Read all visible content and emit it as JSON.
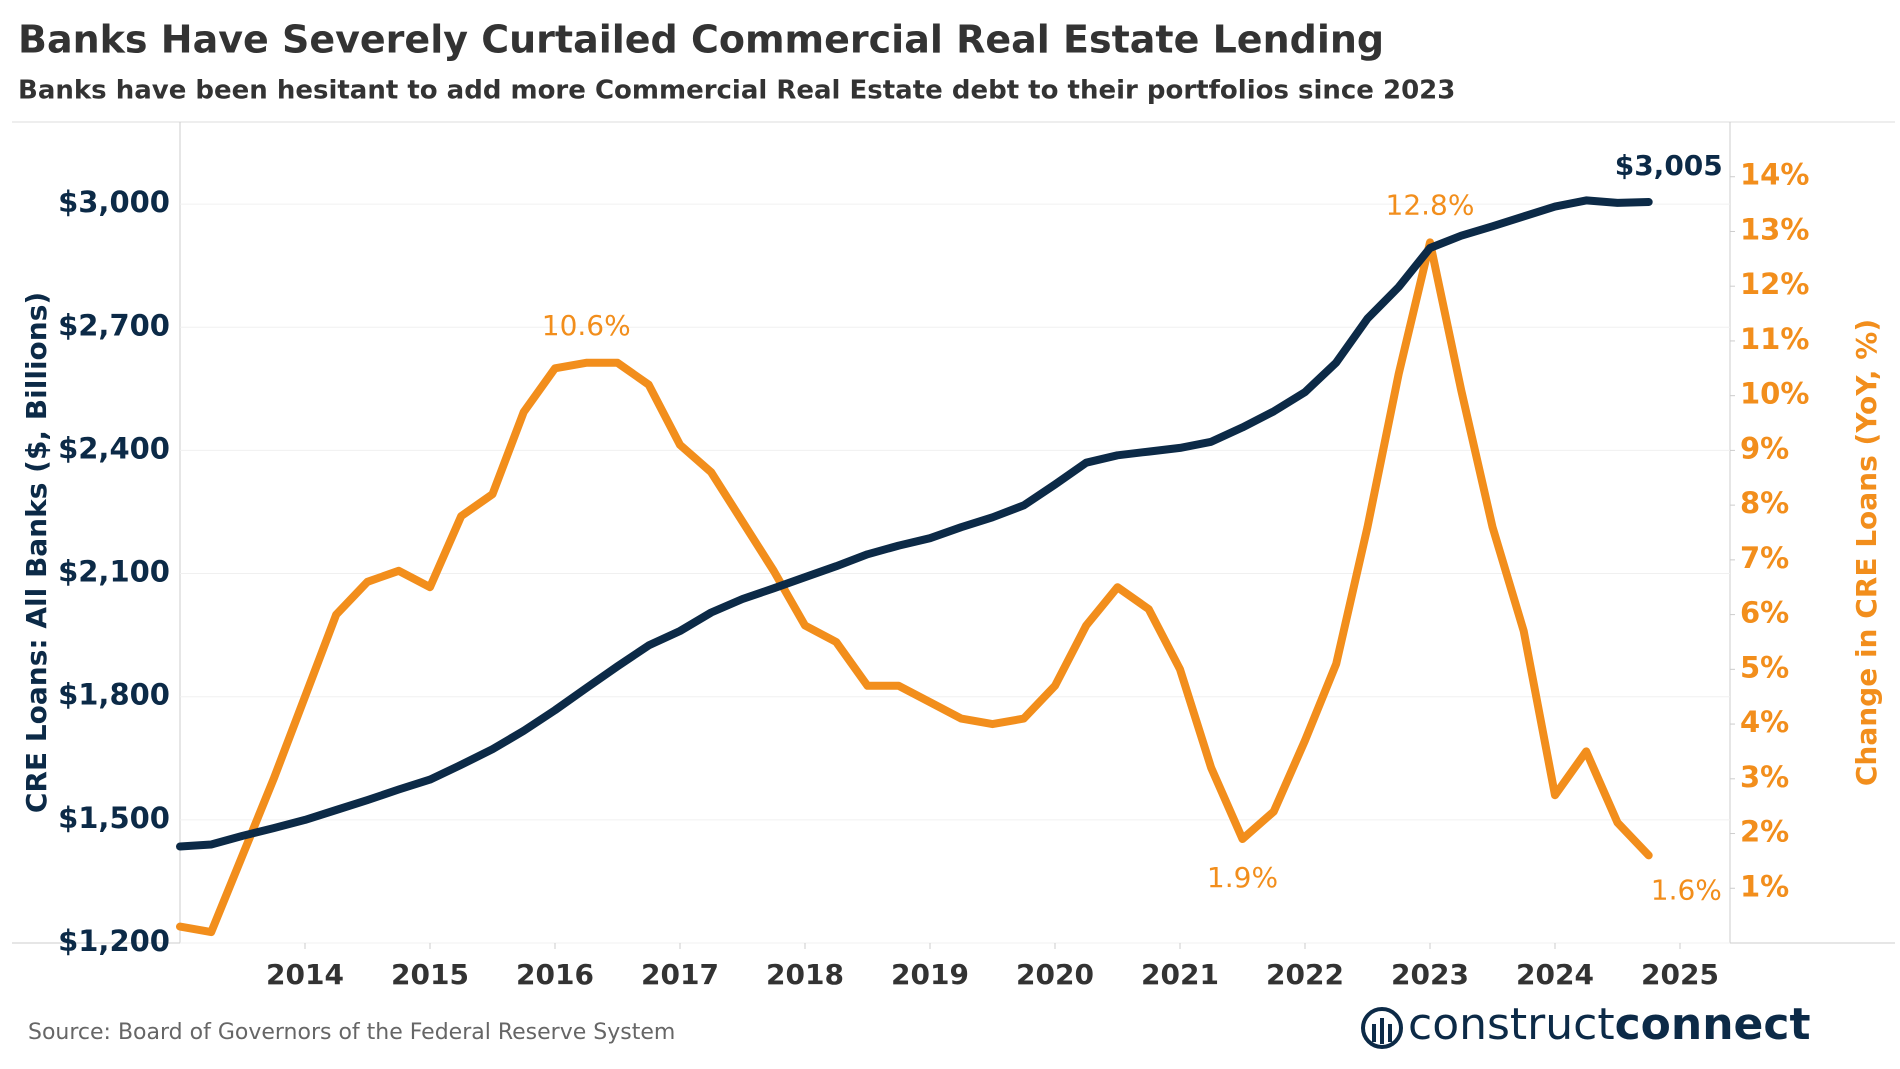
{
  "chart_data": {
    "type": "line",
    "title": "Banks Have Severely Curtailed Commercial Real Estate Lending",
    "subtitle": "Banks have been hesitant to add more Commercial Real Estate debt to their portfolios since 2023",
    "source": "Source: Board of Governors of the Federal Reserve System",
    "logo": {
      "prefix": "construct",
      "suffix": "connect"
    },
    "ylabel": "CRE Loans: All Banks ($, Billions)",
    "y2label": "Change in CRE Loans (YoY, %)",
    "x": [
      2013,
      2013.25,
      2013.5,
      2013.75,
      2014,
      2014.25,
      2014.5,
      2014.75,
      2015,
      2015.25,
      2015.5,
      2015.75,
      2016,
      2016.25,
      2016.5,
      2016.75,
      2017,
      2017.25,
      2017.5,
      2017.75,
      2018,
      2018.25,
      2018.5,
      2018.75,
      2019,
      2019.25,
      2019.5,
      2019.75,
      2020,
      2020.25,
      2020.5,
      2020.75,
      2021,
      2021.25,
      2021.5,
      2021.75,
      2022,
      2022.25,
      2022.5,
      2022.75,
      2023,
      2023.25,
      2023.5,
      2023.75,
      2024,
      2024.25,
      2024.5,
      2024.75
    ],
    "xlim": [
      2013,
      2025.4
    ],
    "xticks": [
      2014,
      2015,
      2016,
      2017,
      2018,
      2019,
      2020,
      2021,
      2022,
      2023,
      2024,
      2025
    ],
    "ylim": [
      1200,
      3200
    ],
    "yticks": [
      {
        "value": 1200,
        "label": "$1,200"
      },
      {
        "value": 1500,
        "label": "$1,500"
      },
      {
        "value": 1800,
        "label": "$1,800"
      },
      {
        "value": 2100,
        "label": "$2,100"
      },
      {
        "value": 2400,
        "label": "$2,400"
      },
      {
        "value": 2700,
        "label": "$2,700"
      },
      {
        "value": 3000,
        "label": "$3,000"
      }
    ],
    "y2lim": [
      0,
      15
    ],
    "y2ticks": [
      {
        "value": 1,
        "label": "1%"
      },
      {
        "value": 2,
        "label": "2%"
      },
      {
        "value": 3,
        "label": "3%"
      },
      {
        "value": 4,
        "label": "4%"
      },
      {
        "value": 5,
        "label": "5%"
      },
      {
        "value": 6,
        "label": "6%"
      },
      {
        "value": 7,
        "label": "7%"
      },
      {
        "value": 8,
        "label": "8%"
      },
      {
        "value": 9,
        "label": "9%"
      },
      {
        "value": 10,
        "label": "10%"
      },
      {
        "value": 11,
        "label": "11%"
      },
      {
        "value": 12,
        "label": "12%"
      },
      {
        "value": 13,
        "label": "13%"
      },
      {
        "value": 14,
        "label": "14%"
      }
    ],
    "grid": true,
    "series": [
      {
        "name": "CRE Loans: All Banks ($, Billions)",
        "color": "#0c2a47",
        "values": [
          1435,
          1440,
          1461,
          1480,
          1500,
          1524,
          1548,
          1574,
          1598,
          1634,
          1672,
          1717,
          1767,
          1821,
          1874,
          1925,
          1960,
          2005,
          2038,
          2064,
          2091,
          2118,
          2147,
          2168,
          2186,
          2213,
          2237,
          2266,
          2317,
          2370,
          2388,
          2397,
          2406,
          2421,
          2456,
          2495,
          2542,
          2614,
          2721,
          2798,
          2893,
          2923,
          2946,
          2970,
          2994,
          3009,
          3003,
          3005
        ],
        "value_labels": [
          null,
          null,
          null,
          null,
          null,
          null,
          null,
          null,
          null,
          null,
          null,
          null,
          null,
          null,
          null,
          null,
          null,
          null,
          null,
          null,
          null,
          null,
          null,
          null,
          null,
          null,
          null,
          null,
          null,
          null,
          null,
          null,
          null,
          null,
          null,
          null,
          null,
          null,
          null,
          null,
          null,
          null,
          null,
          null,
          null,
          null,
          null,
          "$3,005"
        ]
      },
      {
        "name": "Change in CRE Loans (YoY, %)",
        "color": "#f28e1c",
        "axis": "y2",
        "values": [
          0.3,
          0.2,
          1.6,
          3.0,
          4.5,
          6.0,
          6.6,
          6.8,
          6.5,
          7.8,
          8.2,
          9.7,
          10.5,
          10.6,
          10.6,
          10.2,
          9.1,
          8.6,
          7.7,
          6.8,
          5.8,
          5.5,
          4.7,
          4.7,
          4.4,
          4.1,
          4.0,
          4.1,
          4.7,
          5.8,
          6.5,
          6.1,
          5.0,
          3.2,
          1.9,
          2.4,
          3.7,
          5.1,
          7.6,
          10.4,
          12.8,
          10.1,
          7.6,
          5.7,
          2.7,
          3.5,
          2.2,
          1.6
        ],
        "value_labels": [
          null,
          null,
          null,
          null,
          null,
          null,
          null,
          null,
          null,
          null,
          null,
          null,
          null,
          "10.6%",
          null,
          null,
          null,
          null,
          null,
          null,
          null,
          null,
          null,
          null,
          null,
          null,
          null,
          null,
          null,
          null,
          null,
          null,
          null,
          null,
          "1.9%",
          null,
          null,
          null,
          null,
          null,
          "12.8%",
          null,
          null,
          null,
          null,
          null,
          null,
          "1.6%"
        ]
      }
    ]
  }
}
